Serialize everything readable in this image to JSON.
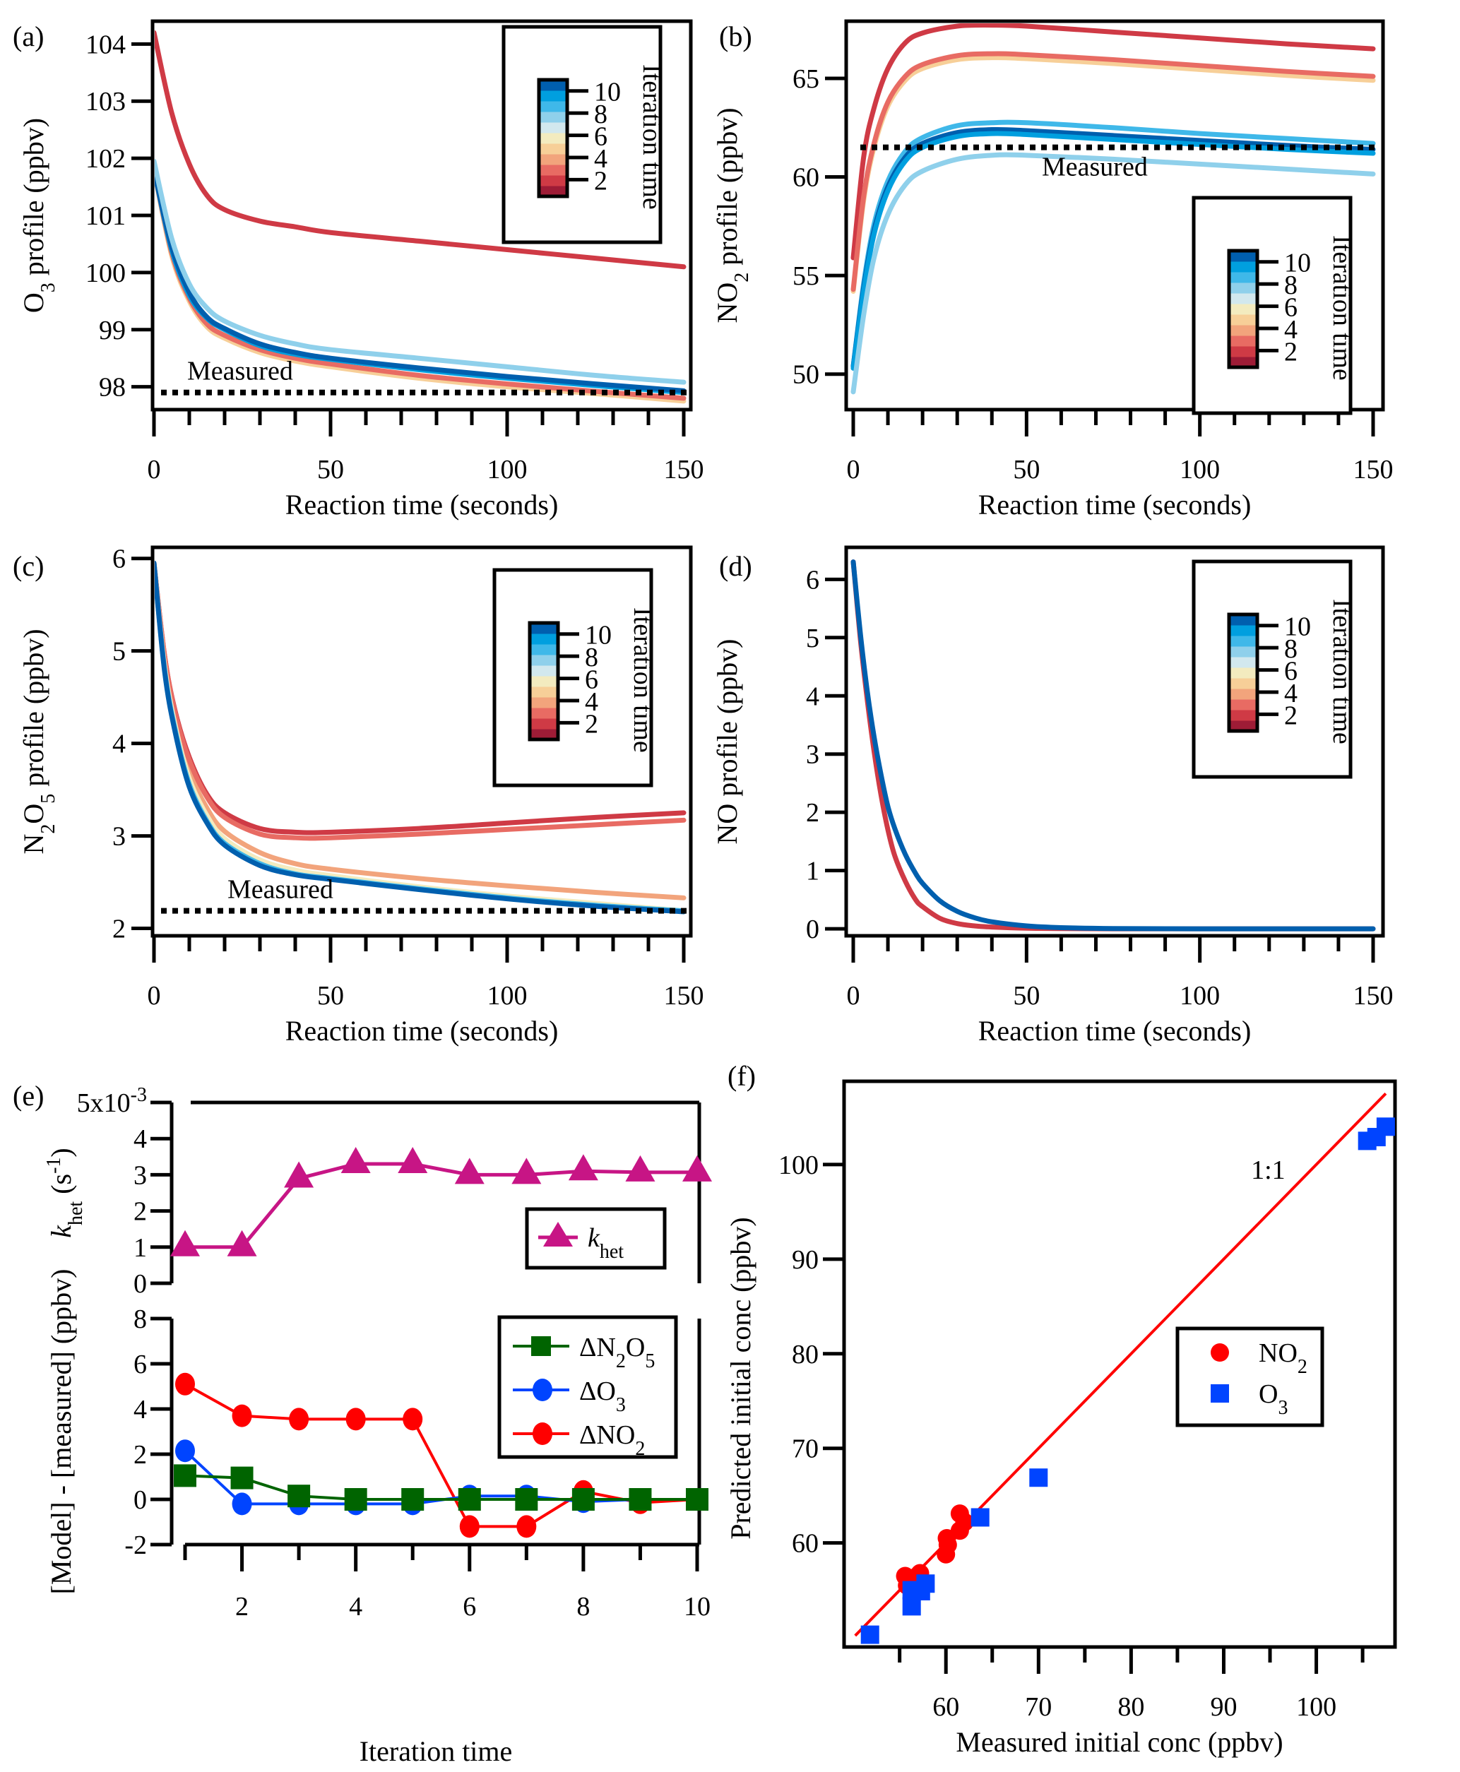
{
  "colorbar": {
    "label": "Iteration time",
    "ticks": [
      "2",
      "4",
      "6",
      "8",
      "10"
    ],
    "colors": [
      "#9e1c36",
      "#cf3a45",
      "#e86b63",
      "#f2a47c",
      "#f7cf98",
      "#f3ebbf",
      "#d2e8ee",
      "#8fd0eb",
      "#3fb8e9",
      "#009fdf",
      "#005fae"
    ]
  },
  "chart_data": [
    {
      "id": "a",
      "panel_label": "(a)",
      "type": "line",
      "title": "",
      "xlabel": "Reaction time (seconds)",
      "ylabel": "O3 profile (ppbv)",
      "ylabel_main": "O",
      "ylabel_sub": "3",
      "ylabel_rest": " profile (ppbv)",
      "xlim": [
        0,
        150
      ],
      "ylim": [
        97.6,
        104.4
      ],
      "xticks": [
        0,
        50,
        100,
        150
      ],
      "yticks": [
        98,
        99,
        100,
        101,
        102,
        103,
        104
      ],
      "measured": {
        "label": "Measured",
        "value": 97.9
      },
      "legend": "top-right",
      "x": [
        0,
        5,
        10,
        15,
        20,
        30,
        40,
        50,
        75,
        100,
        125,
        150
      ],
      "series": [
        {
          "name": "Iteration 1",
          "iteration": 1,
          "values": [
            104.2,
            102.8,
            101.9,
            101.35,
            101.1,
            100.9,
            100.8,
            100.7,
            100.55,
            100.4,
            100.25,
            100.1
          ]
        },
        {
          "name": "Iteration 4",
          "iteration": 4,
          "values": [
            101.8,
            100.3,
            99.5,
            99.05,
            98.85,
            98.6,
            98.45,
            98.35,
            98.15,
            98.0,
            97.88,
            97.75
          ]
        },
        {
          "name": "Iteration 2",
          "iteration": 2,
          "values": [
            101.8,
            100.35,
            99.55,
            99.1,
            98.9,
            98.65,
            98.5,
            98.4,
            98.2,
            98.05,
            97.92,
            97.8
          ]
        },
        {
          "name": "Iteration 9",
          "iteration": 9,
          "values": [
            101.8,
            100.4,
            99.6,
            99.2,
            99.0,
            98.72,
            98.57,
            98.48,
            98.3,
            98.15,
            98.02,
            97.9
          ]
        },
        {
          "name": "Iteration 10",
          "iteration": 10,
          "values": [
            101.8,
            100.45,
            99.65,
            99.22,
            99.02,
            98.75,
            98.6,
            98.5,
            98.33,
            98.18,
            98.05,
            97.93
          ]
        },
        {
          "name": "Iteration 7",
          "iteration": 7,
          "values": [
            101.95,
            100.6,
            99.8,
            99.38,
            99.15,
            98.9,
            98.75,
            98.65,
            98.5,
            98.35,
            98.2,
            98.08
          ]
        }
      ]
    },
    {
      "id": "b",
      "panel_label": "(b)",
      "type": "line",
      "title": "",
      "xlabel": "Reaction time (seconds)",
      "ylabel": "NO2 profile (ppbv)",
      "ylabel_main": "NO",
      "ylabel_sub": "2",
      "ylabel_rest": " profile (ppbv)",
      "xlim": [
        0,
        150
      ],
      "ylim": [
        48.2,
        67.9
      ],
      "xticks": [
        0,
        50,
        100,
        150
      ],
      "yticks": [
        50,
        55,
        60,
        65
      ],
      "measured": {
        "label": "Measured",
        "value": 61.5
      },
      "legend": "bottom-right",
      "x": [
        0,
        3,
        6,
        10,
        15,
        20,
        30,
        40,
        50,
        75,
        100,
        125,
        150
      ],
      "series": [
        {
          "name": "Iteration 1",
          "iteration": 1,
          "values": [
            55.9,
            61.0,
            63.5,
            65.5,
            66.8,
            67.3,
            67.65,
            67.7,
            67.65,
            67.35,
            67.05,
            66.75,
            66.5
          ]
        },
        {
          "name": "Iteration 4",
          "iteration": 4,
          "values": [
            54.2,
            58.8,
            61.5,
            63.6,
            64.9,
            65.5,
            65.95,
            66.05,
            66.0,
            65.75,
            65.45,
            65.15,
            64.9
          ]
        },
        {
          "name": "Iteration 2",
          "iteration": 2,
          "values": [
            54.3,
            59.0,
            61.7,
            63.8,
            65.1,
            65.7,
            66.15,
            66.25,
            66.2,
            65.95,
            65.65,
            65.35,
            65.1
          ]
        },
        {
          "name": "Iteration 8",
          "iteration": 8,
          "values": [
            50.4,
            54.6,
            57.6,
            59.8,
            61.3,
            62.0,
            62.6,
            62.75,
            62.75,
            62.5,
            62.2,
            61.95,
            61.7
          ]
        },
        {
          "name": "Iteration 10",
          "iteration": 10,
          "values": [
            50.4,
            54.4,
            57.3,
            59.5,
            61.0,
            61.7,
            62.25,
            62.4,
            62.35,
            62.1,
            61.85,
            61.6,
            61.4
          ]
        },
        {
          "name": "Iteration 9",
          "iteration": 9,
          "values": [
            50.3,
            54.2,
            57.1,
            59.3,
            60.8,
            61.5,
            62.05,
            62.2,
            62.15,
            61.9,
            61.65,
            61.4,
            61.2
          ]
        },
        {
          "name": "Iteration 7",
          "iteration": 7,
          "values": [
            49.1,
            53.0,
            55.9,
            58.1,
            59.6,
            60.3,
            60.9,
            61.1,
            61.1,
            60.9,
            60.65,
            60.4,
            60.15
          ]
        }
      ]
    },
    {
      "id": "c",
      "panel_label": "(c)",
      "type": "line",
      "title": "",
      "xlabel": "Reaction time (seconds)",
      "ylabel": "N2O5 profile (ppbv)",
      "ylabel_main": "N",
      "ylabel_sub": "2",
      "ylabel_mid": "O",
      "ylabel_sub2": "5",
      "ylabel_rest": " profile (ppbv)",
      "xlim": [
        0,
        150
      ],
      "ylim": [
        1.92,
        6.12
      ],
      "xticks": [
        0,
        50,
        100,
        150
      ],
      "yticks": [
        2,
        3,
        4,
        5,
        6
      ],
      "measured": {
        "label": "Measured",
        "value": 2.19
      },
      "legend": "top-right",
      "x": [
        0,
        3,
        6,
        10,
        15,
        20,
        30,
        40,
        50,
        75,
        100,
        125,
        150
      ],
      "series": [
        {
          "name": "Iteration 3",
          "iteration": 3,
          "values": [
            5.95,
            4.9,
            4.25,
            3.7,
            3.3,
            3.05,
            2.82,
            2.7,
            2.64,
            2.54,
            2.46,
            2.39,
            2.33
          ]
        },
        {
          "name": "Iteration 1",
          "iteration": 1,
          "values": [
            5.95,
            4.95,
            4.35,
            3.85,
            3.45,
            3.25,
            3.08,
            3.04,
            3.04,
            3.08,
            3.14,
            3.2,
            3.25
          ]
        },
        {
          "name": "Iteration 2",
          "iteration": 2,
          "values": [
            5.95,
            4.95,
            4.33,
            3.82,
            3.42,
            3.2,
            3.02,
            2.98,
            2.98,
            3.02,
            3.07,
            3.12,
            3.17
          ]
        },
        {
          "name": "Iteration 5",
          "iteration": 5,
          "values": [
            5.95,
            4.85,
            4.2,
            3.62,
            3.22,
            2.97,
            2.74,
            2.63,
            2.57,
            2.45,
            2.35,
            2.27,
            2.19
          ]
        },
        {
          "name": "Iteration 8",
          "iteration": 8,
          "values": [
            5.95,
            4.8,
            4.15,
            3.56,
            3.16,
            2.92,
            2.7,
            2.59,
            2.54,
            2.43,
            2.33,
            2.25,
            2.19
          ]
        },
        {
          "name": "Iteration 10",
          "iteration": 10,
          "values": [
            5.95,
            4.78,
            4.12,
            3.53,
            3.14,
            2.9,
            2.68,
            2.58,
            2.53,
            2.42,
            2.32,
            2.24,
            2.18
          ]
        }
      ]
    },
    {
      "id": "d",
      "panel_label": "(d)",
      "type": "line",
      "title": "",
      "xlabel": "Reaction time (seconds)",
      "ylabel": "NO profile (ppbv)",
      "xlim": [
        0,
        150
      ],
      "ylim": [
        -0.12,
        6.55
      ],
      "xticks": [
        0,
        50,
        100,
        150
      ],
      "yticks": [
        0,
        1,
        2,
        3,
        4,
        5,
        6
      ],
      "legend": "top-right",
      "x": [
        0,
        2,
        4,
        6,
        8,
        10,
        12,
        15,
        18,
        20,
        25,
        30,
        35,
        40,
        50,
        60,
        75,
        100,
        125,
        150
      ],
      "series": [
        {
          "name": "Iteration 1",
          "iteration": 1,
          "values": [
            6.3,
            5.0,
            3.95,
            3.05,
            2.3,
            1.7,
            1.25,
            0.82,
            0.5,
            0.38,
            0.18,
            0.09,
            0.05,
            0.03,
            0.01,
            0.005,
            0.0,
            0.0,
            0.0,
            0.0
          ]
        },
        {
          "name": "Iteration 10",
          "iteration": 10,
          "values": [
            6.3,
            5.1,
            4.1,
            3.3,
            2.65,
            2.1,
            1.72,
            1.28,
            0.95,
            0.78,
            0.48,
            0.3,
            0.19,
            0.12,
            0.05,
            0.02,
            0.005,
            0.0,
            0.0,
            0.0
          ]
        }
      ]
    },
    {
      "id": "e-top",
      "panel_label": "(e)",
      "type": "line",
      "title": "",
      "xlabel": "",
      "ylabel": "k_het (s^-1)",
      "ylabel_k": "k",
      "ylabel_ksub": "het",
      "ylabel_unit": " (s",
      "ylabel_sup": "-1",
      "ylabel_close": ")",
      "xlim": [
        0.6,
        10
      ],
      "ylim": [
        0,
        0.005
      ],
      "yticks": [
        0,
        1,
        2,
        3,
        4,
        5
      ],
      "ytick_top_label": "5x10",
      "ytick_top_exp": "-3",
      "ytick_scale": 0.001,
      "legend": "right",
      "x": [
        1,
        2,
        3,
        4,
        5,
        6,
        7,
        8,
        9,
        10
      ],
      "series": [
        {
          "name": "k_het",
          "label_k": "k",
          "label_sub": "het",
          "color": "#c71585",
          "marker": "triangle",
          "values": [
            0.001,
            0.001,
            0.0029,
            0.0033,
            0.0033,
            0.003,
            0.003,
            0.0031,
            0.00307,
            0.00307
          ]
        }
      ]
    },
    {
      "id": "e-bottom",
      "type": "line",
      "title": "",
      "xlabel": "Iteration time",
      "ylabel": "[Model] - [measured] (ppbv)",
      "xlim": [
        0.6,
        10
      ],
      "ylim": [
        -2,
        8
      ],
      "xticks": [
        2,
        4,
        6,
        8,
        10
      ],
      "xticks_minor": [
        1,
        3,
        5,
        7,
        9
      ],
      "yticks": [
        -2,
        0,
        2,
        4,
        6,
        8
      ],
      "legend": "top-right",
      "x": [
        1,
        2,
        3,
        4,
        5,
        6,
        7,
        8,
        9,
        10
      ],
      "series": [
        {
          "name": "ΔNO2",
          "label_main": "ΔNO",
          "label_sub": "2",
          "label_sub_after": "",
          "color": "#ff0000",
          "marker": "circle",
          "values": [
            5.1,
            3.7,
            3.55,
            3.55,
            3.55,
            -1.2,
            -1.2,
            0.35,
            -0.15,
            0.0
          ]
        },
        {
          "name": "ΔO3",
          "label_main": "ΔO",
          "label_sub": "3",
          "label_sub_after": "",
          "color": "#0044ff",
          "marker": "circle",
          "values": [
            2.15,
            -0.2,
            -0.2,
            -0.2,
            -0.2,
            0.15,
            0.15,
            -0.1,
            0.0,
            0.0
          ]
        },
        {
          "name": "ΔN2O5",
          "label_main": "ΔN",
          "label_sub": "2",
          "label_mid": "O",
          "label_sub_after": "5",
          "color": "#006400",
          "marker": "square",
          "values": [
            1.05,
            0.95,
            0.15,
            0.0,
            0.0,
            0.0,
            0.0,
            0.0,
            0.0,
            0.0
          ]
        }
      ]
    },
    {
      "id": "f",
      "panel_label": "(f)",
      "type": "scatter",
      "title": "",
      "xlabel": "Measured initial conc (ppbv)",
      "ylabel": "Predicted initial conc (ppbv)",
      "xlim": [
        49,
        108.5
      ],
      "ylim": [
        49,
        108.8
      ],
      "xticks": [
        60,
        70,
        80,
        90,
        100
      ],
      "xticks_minor": [
        55,
        65,
        75,
        85,
        95,
        105
      ],
      "yticks": [
        60,
        70,
        80,
        90,
        100
      ],
      "line_label": "1:1",
      "line_color": "#ff0000",
      "line_range": [
        50.2,
        107.5
      ],
      "legend": "right",
      "series": [
        {
          "name": "NO2",
          "label_main": "NO",
          "label_sub": "2",
          "color": "#ff0000",
          "marker": "circle",
          "x": [
            55.6,
            55.8,
            56.9,
            57.2,
            60.0,
            60.2,
            60.1,
            61.5,
            61.5,
            62.0
          ],
          "y": [
            56.5,
            55.5,
            56.5,
            56.8,
            58.8,
            59.8,
            60.5,
            61.3,
            63.1,
            62.2
          ]
        },
        {
          "name": "O3",
          "label_main": "O",
          "label_sub": "3",
          "color": "#0044ff",
          "marker": "square",
          "x": [
            51.8,
            56.3,
            56.3,
            57.0,
            57.3,
            57.8,
            63.7,
            70.0,
            105.5,
            106.5,
            107.5
          ],
          "y": [
            50.3,
            53.3,
            55.0,
            55.0,
            54.9,
            55.7,
            62.7,
            66.9,
            102.5,
            102.9,
            104.0
          ]
        }
      ]
    }
  ]
}
